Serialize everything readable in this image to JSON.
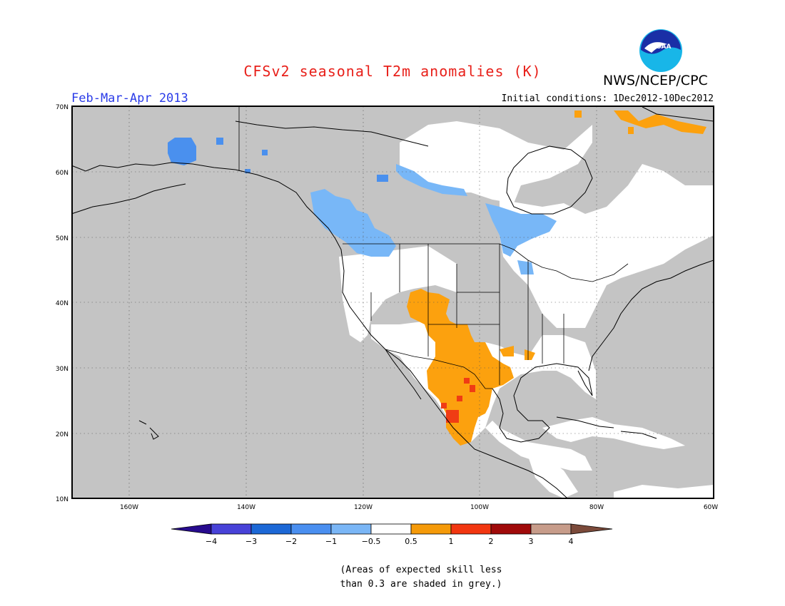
{
  "header": {
    "title": "CFSv2 seasonal T2m anomalies (K)",
    "agency": "NWS/NCEP/CPC",
    "season": "Feb-Mar-Apr 2013",
    "initial_conditions": "Initial conditions: 1Dec2012-10Dec2012",
    "logo_text": "NOAA"
  },
  "map": {
    "lat_labels": [
      "70N",
      "60N",
      "50N",
      "40N",
      "30N",
      "20N",
      "10N"
    ],
    "lon_labels": [
      "160W",
      "140W",
      "120W",
      "100W",
      "80W",
      "60W"
    ],
    "colors": {
      "no_skill": "#c4c4c4",
      "neutral": "#ffffff",
      "warm_0_5_1": "#fca10e",
      "warm_1_2": "#f03c14",
      "cool_m1_m0_5": "#78b7f7",
      "cool_m2_m1": "#4a90ee",
      "coast": "#000000"
    }
  },
  "colorbar": {
    "labels": [
      "-4",
      "-3",
      "-2",
      "-1",
      "-0.5",
      "0.5",
      "1",
      "2",
      "3",
      "4"
    ],
    "colors": [
      "#270b8e",
      "#4842d8",
      "#1c68d6",
      "#4a8ff0",
      "#7ab6f6",
      "#ffffff",
      "#f59a09",
      "#f23610",
      "#a00a0a",
      "#c79c8a",
      "#7b4a3a"
    ]
  },
  "note": {
    "line1": "(Areas of expected skill less",
    "line2": "than 0.3 are shaded in grey.)"
  }
}
